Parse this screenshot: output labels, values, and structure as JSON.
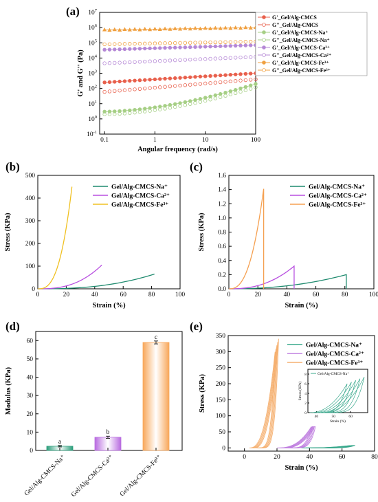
{
  "panels": {
    "a": {
      "label": "(a)"
    },
    "b": {
      "label": "(b)"
    },
    "c": {
      "label": "(c)"
    },
    "d": {
      "label": "(d)"
    },
    "e": {
      "label": "(e)"
    }
  },
  "colors": {
    "gel": "#e8604c",
    "na": "#a6cf85",
    "ca": "#b588d6",
    "fe": "#f0a040",
    "na_line": "#1e8a6e",
    "ca_line": "#b84fe0",
    "fe_line_b": "#f0c020",
    "fe_line_c": "#f5a050",
    "bar_na": "#2a9d7a",
    "bar_ca": "#b86be0",
    "bar_fe": "#f8a75a",
    "cyc_na": "#39a88c",
    "cyc_ca": "#c080e0",
    "cyc_fe": "#f5b070"
  },
  "chart_data": [
    {
      "panel": "a",
      "type": "scatter",
      "xlabel": "Angular frequency (rad/s)",
      "ylabel": "G' and G'' (Pa)",
      "x_scale": "log",
      "y_scale": "log",
      "xlim": [
        0.08,
        100
      ],
      "ylim": [
        0.1,
        10000000
      ],
      "x_ticks": [
        {
          "v": 0.1,
          "label": "0.1"
        },
        {
          "v": 1,
          "label": "1"
        },
        {
          "v": 10,
          "label": "10"
        },
        {
          "v": 100,
          "label": "100"
        }
      ],
      "y_ticks": [
        {
          "v": 0.1,
          "base": "10",
          "exp": "-1"
        },
        {
          "v": 1,
          "base": "10",
          "exp": "0"
        },
        {
          "v": 10,
          "base": "10",
          "exp": "1"
        },
        {
          "v": 100,
          "base": "10",
          "exp": "2"
        },
        {
          "v": 1000,
          "base": "10",
          "exp": "3"
        },
        {
          "v": 10000,
          "base": "10",
          "exp": "4"
        },
        {
          "v": 100000,
          "base": "10",
          "exp": "5"
        },
        {
          "v": 1000000,
          "base": "10",
          "exp": "6"
        },
        {
          "v": 10000000,
          "base": "10",
          "exp": "7"
        }
      ],
      "legend_position": "top-right",
      "series": [
        {
          "name": "G'_Gel/Alg-CMCS",
          "color_key": "gel",
          "filled": true,
          "y0": 250,
          "y1": 1000
        },
        {
          "name": "G''_Gel/Alg-CMCS",
          "color_key": "gel",
          "filled": false,
          "y0": 60,
          "y1": 400
        },
        {
          "name": "G'_Gel/Alg-CMCS-Na⁺",
          "color_key": "na",
          "filled": true,
          "y0": 3,
          "y1": 200
        },
        {
          "name": "G''_Gel/Alg-CMCS-Na⁺",
          "color_key": "na",
          "filled": false,
          "y0": 2,
          "y1": 120
        },
        {
          "name": "G'_Gel/Alg-CMCS-Ca²⁺",
          "color_key": "ca",
          "filled": true,
          "y0": 35000,
          "y1": 70000
        },
        {
          "name": "G''_Gel/Alg-CMCS-Ca²⁺",
          "color_key": "ca",
          "filled": false,
          "y0": 4500,
          "y1": 12000
        },
        {
          "name": "G'_Gel/Alg-CMCS-Fe³⁺",
          "color_key": "fe",
          "filled": true,
          "y0": 700000,
          "y1": 1000000
        },
        {
          "name": "G''_Gel/Alg-CMCS-Fe³⁺",
          "color_key": "fe",
          "filled": false,
          "y0": 80000,
          "y1": 120000
        }
      ]
    },
    {
      "panel": "b",
      "type": "line",
      "xlabel": "Strain (%)",
      "ylabel": "Stress (KPa)",
      "xlim": [
        0,
        100
      ],
      "ylim": [
        0,
        500
      ],
      "x_ticks": [
        0,
        20,
        40,
        60,
        80,
        100
      ],
      "y_ticks": [
        0,
        100,
        200,
        300,
        400,
        500
      ],
      "legend_position": "top-right",
      "series": [
        {
          "name": "Gel/Alg-CMCS-Na⁺",
          "color_key": "na_line",
          "x_end": 82,
          "y_end": 65,
          "power": 2.5
        },
        {
          "name": "Gel/Alg-CMCS-Ca²⁺",
          "color_key": "ca_line",
          "x_end": 45,
          "y_end": 105,
          "power": 2.6
        },
        {
          "name": "Gel/Alg-CMCS-Fe³⁺",
          "color_key": "fe_line_b",
          "x_end": 24,
          "y_end": 450,
          "power": 2.8
        }
      ]
    },
    {
      "panel": "c",
      "type": "line",
      "xlabel": "Strain (%)",
      "ylabel": "Stress (KPa)",
      "xlim": [
        0,
        100
      ],
      "ylim": [
        0,
        1.6
      ],
      "x_ticks": [
        0,
        20,
        40,
        60,
        80,
        100
      ],
      "y_ticks": [
        0.0,
        0.2,
        0.4,
        0.6,
        0.8,
        1.0,
        1.2,
        1.4,
        1.6
      ],
      "legend_position": "top-right",
      "series": [
        {
          "name": "Gel/Alg-CMCS-Na⁺",
          "color_key": "na_line",
          "x_end": 81,
          "y_end": 0.2,
          "power": 2.2
        },
        {
          "name": "Gel/Alg-CMCS-Ca²⁺",
          "color_key": "ca_line",
          "x_end": 45,
          "y_end": 0.32,
          "power": 2.4
        },
        {
          "name": "Gel/Alg-CMCS-Fe³⁺",
          "color_key": "fe_line_c",
          "x_end": 24,
          "y_end": 1.41,
          "power": 2.6
        }
      ]
    },
    {
      "panel": "d",
      "type": "bar",
      "ylabel": "Modulus (KPa)",
      "ylim": [
        0,
        65
      ],
      "y_ticks": [
        0,
        10,
        20,
        30,
        40,
        50,
        60
      ],
      "categories": [
        "Gel/Alg-CMCS-Na⁺",
        "Gel/Alg-CMCS-Ca²⁺",
        "Gel/Alg-CMCS-Fe³⁺"
      ],
      "values": [
        2.3,
        7.2,
        59
      ],
      "errors": [
        0.4,
        0.6,
        0.8
      ],
      "significance": [
        "a",
        "b",
        "c"
      ],
      "color_keys": [
        "bar_na",
        "bar_ca",
        "bar_fe"
      ]
    },
    {
      "panel": "e",
      "type": "line",
      "xlabel": "Strain (%)",
      "ylabel": "Stress (KPa)",
      "xlim": [
        -10,
        80
      ],
      "ylim": [
        -10,
        350
      ],
      "x_ticks": [
        0,
        20,
        40,
        60,
        80
      ],
      "y_ticks": [
        0,
        50,
        100,
        150,
        200,
        250,
        300,
        350
      ],
      "legend_position": "top-right",
      "series": [
        {
          "name": "Gel/Alg-CMCS-Na⁺",
          "color_key": "cyc_na",
          "x_start": 35,
          "x_end": 68,
          "y_max": 8,
          "cycles": 5
        },
        {
          "name": "Gel/Alg-CMCS-Ca²⁺",
          "color_key": "cyc_ca",
          "x_start": 20,
          "x_end": 44,
          "y_max": 75,
          "cycles": 5
        },
        {
          "name": "Gel/Alg-CMCS-Fe³⁺",
          "color_key": "cyc_fe",
          "x_start": 3,
          "x_end": 21,
          "y_max": 340,
          "cycles": 5
        }
      ],
      "inset": {
        "legend": "Gel/Alg-CMCS-Na⁺",
        "xlabel": "Strain (%)",
        "ylabel": "Stress (KPa)",
        "xlim": [
          35,
          70
        ],
        "ylim": [
          0,
          9
        ],
        "x_ticks": [
          40,
          50,
          60
        ],
        "y_ticks": [
          0,
          2,
          4,
          6,
          8
        ]
      }
    }
  ]
}
